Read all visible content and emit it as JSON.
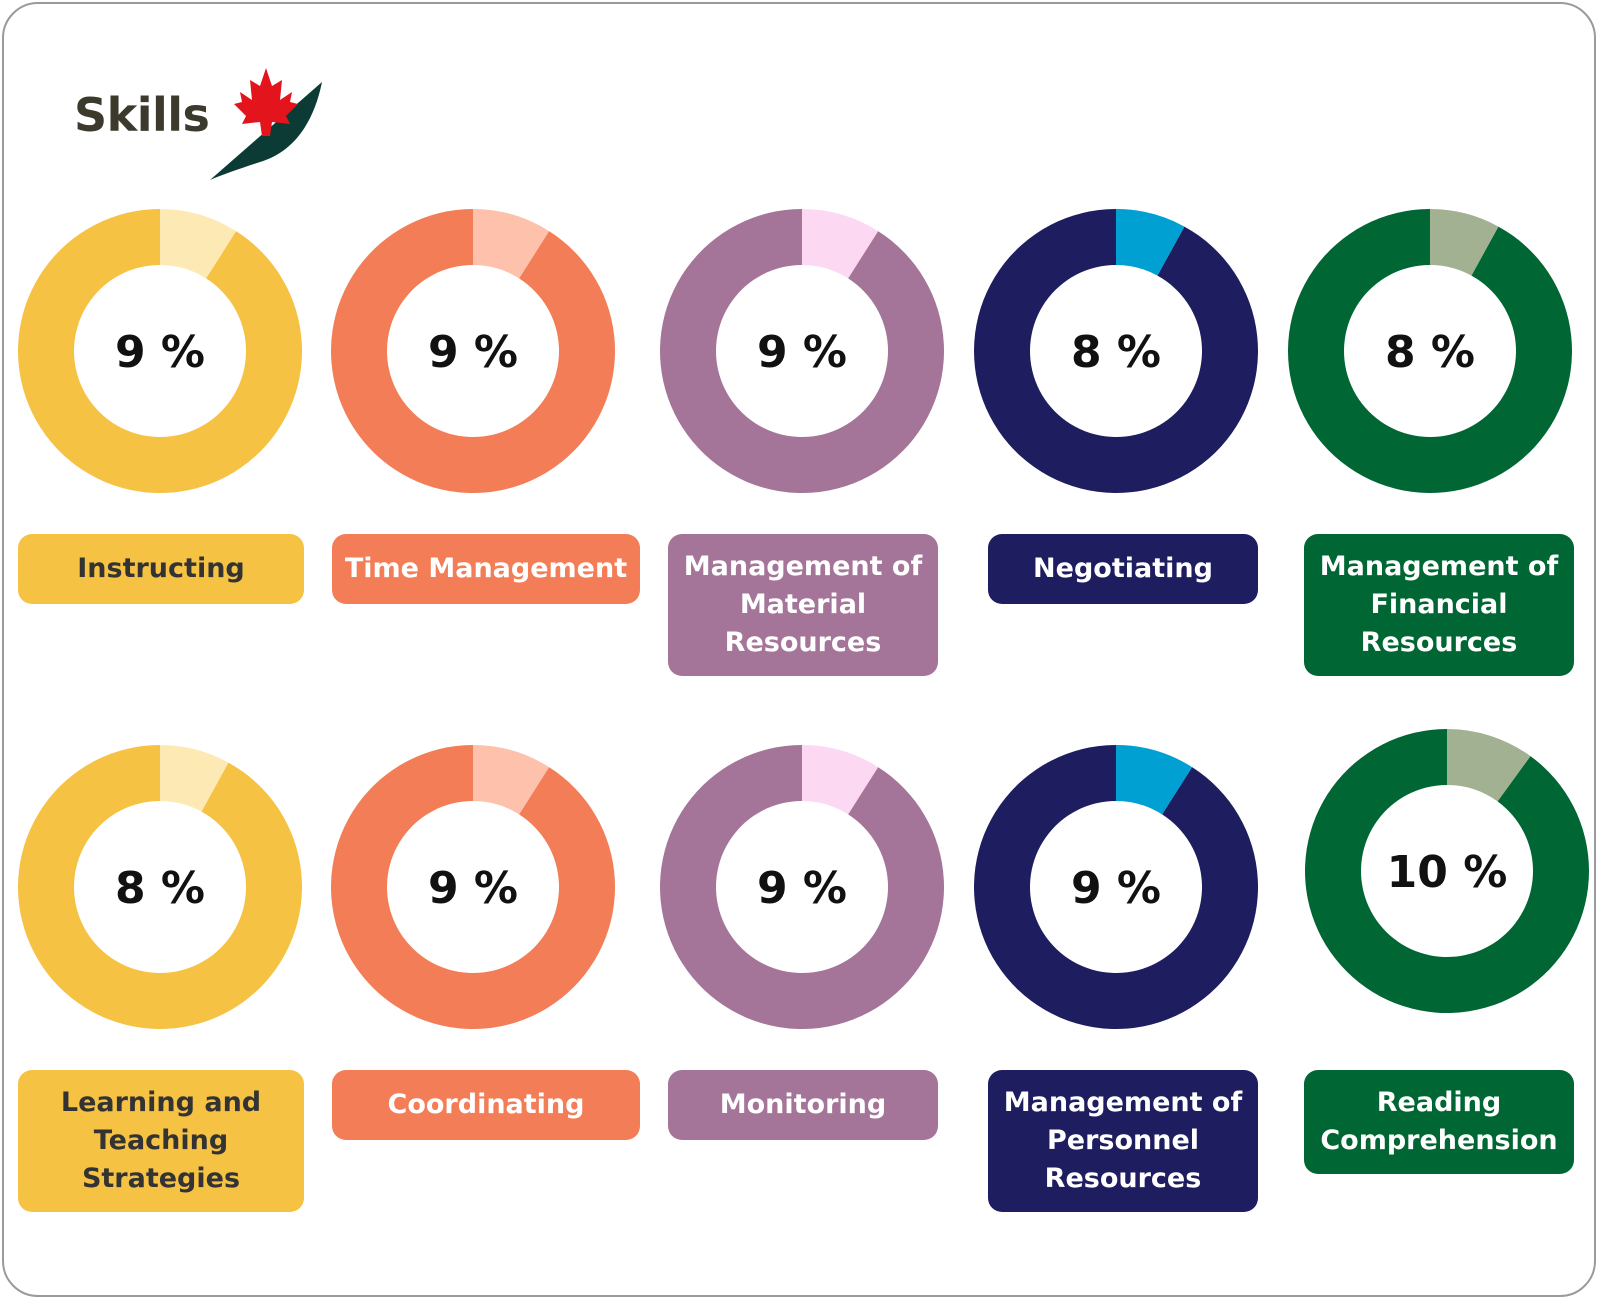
{
  "logo": {
    "text": "Skills",
    "icon": "maple-leaf-checkmark-icon"
  },
  "chart_data": {
    "type": "donut",
    "unit": "%",
    "items": [
      {
        "label": "Instructing",
        "value": 9,
        "value_text": "9 %",
        "color": "#f6c244",
        "accent": "#fde9b3",
        "text_color": "#333333"
      },
      {
        "label": "Time Management",
        "value": 9,
        "value_text": "9 %",
        "color": "#f27d56",
        "accent": "#fdc1ac",
        "text_color": "#ffffff"
      },
      {
        "label": "Management of Material Resources",
        "value": 9,
        "value_text": "9 %",
        "color": "#a57599",
        "accent": "#fdd8f3",
        "text_color": "#ffffff"
      },
      {
        "label": "Negotiating",
        "value": 8,
        "value_text": "8 %",
        "color": "#1e1d60",
        "accent": "#00a0d2",
        "text_color": "#ffffff"
      },
      {
        "label": "Management of Financial Resources",
        "value": 8,
        "value_text": "8 %",
        "color": "#006633",
        "accent": "#a1b191",
        "text_color": "#ffffff"
      },
      {
        "label": "Learning and Teaching Strategies",
        "value": 8,
        "value_text": "8 %",
        "color": "#f6c244",
        "accent": "#fde9b3",
        "text_color": "#333333"
      },
      {
        "label": "Coordinating",
        "value": 9,
        "value_text": "9 %",
        "color": "#f27d56",
        "accent": "#fdc1ac",
        "text_color": "#ffffff"
      },
      {
        "label": "Monitoring",
        "value": 9,
        "value_text": "9 %",
        "color": "#a57599",
        "accent": "#fdd8f3",
        "text_color": "#ffffff"
      },
      {
        "label": "Management of Personnel Resources",
        "value": 9,
        "value_text": "9 %",
        "color": "#1e1d60",
        "accent": "#00a0d2",
        "text_color": "#ffffff"
      },
      {
        "label": "Reading Comprehension",
        "value": 10,
        "value_text": "10 %",
        "color": "#006633",
        "accent": "#a1b191",
        "text_color": "#ffffff"
      }
    ]
  }
}
